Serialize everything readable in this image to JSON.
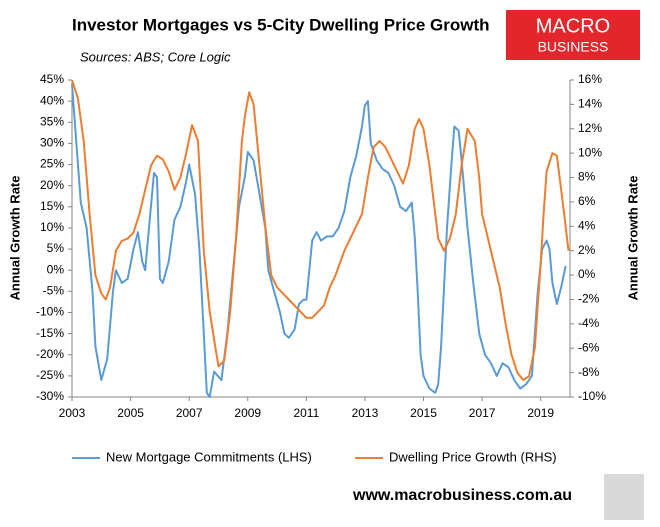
{
  "chart_data": {
    "type": "line",
    "title": "Investor Mortgages vs 5-City Dwelling Price Growth",
    "subtitle": "Sources: ABS; Core Logic",
    "logo": [
      "MACRO",
      "BUSINESS"
    ],
    "footer": "www.macrobusiness.com.au",
    "ylabel": "Annual Growth Rate",
    "y2label": "Annual Growth Rate",
    "xlim": [
      2003,
      2020
    ],
    "xticks": [
      2003,
      2005,
      2007,
      2009,
      2011,
      2013,
      2015,
      2017,
      2019
    ],
    "ylim": [
      -30,
      45
    ],
    "yticks": [
      {
        "value": -30,
        "label": "-30%"
      },
      {
        "value": -25,
        "label": "-25%"
      },
      {
        "value": -20,
        "label": "-20%"
      },
      {
        "value": -15,
        "label": "-15%"
      },
      {
        "value": -10,
        "label": "-10%"
      },
      {
        "value": -5,
        "label": "-5%"
      },
      {
        "value": 0,
        "label": "0%"
      },
      {
        "value": 5,
        "label": "5%"
      },
      {
        "value": 10,
        "label": "10%"
      },
      {
        "value": 15,
        "label": "15%"
      },
      {
        "value": 20,
        "label": "20%"
      },
      {
        "value": 25,
        "label": "25%"
      },
      {
        "value": 30,
        "label": "30%"
      },
      {
        "value": 35,
        "label": "35%"
      },
      {
        "value": 40,
        "label": "40%"
      },
      {
        "value": 45,
        "label": "45%"
      }
    ],
    "y2lim": [
      -10,
      16
    ],
    "y2ticks": [
      {
        "value": -10,
        "label": "-10%"
      },
      {
        "value": -8,
        "label": "-8%"
      },
      {
        "value": -6,
        "label": "-6%"
      },
      {
        "value": -4,
        "label": "-4%"
      },
      {
        "value": -2,
        "label": "-2%"
      },
      {
        "value": 0,
        "label": "0%"
      },
      {
        "value": 2,
        "label": "2%"
      },
      {
        "value": 4,
        "label": "4%"
      },
      {
        "value": 6,
        "label": "6%"
      },
      {
        "value": 8,
        "label": "8%"
      },
      {
        "value": 10,
        "label": "10%"
      },
      {
        "value": 12,
        "label": "12%"
      },
      {
        "value": 14,
        "label": "14%"
      },
      {
        "value": 16,
        "label": "16%"
      }
    ],
    "legend": "bottom",
    "series": [
      {
        "name": "New Mortgage Commitments (LHS)",
        "color": "#5b9bd5",
        "axis": "y",
        "x": [
          2003.0,
          2003.15,
          2003.3,
          2003.5,
          2003.7,
          2003.8,
          2004.0,
          2004.2,
          2004.4,
          2004.5,
          2004.7,
          2004.9,
          2005.1,
          2005.25,
          2005.4,
          2005.5,
          2005.6,
          2005.8,
          2005.9,
          2006.0,
          2006.1,
          2006.3,
          2006.5,
          2006.7,
          2006.9,
          2007.0,
          2007.2,
          2007.35,
          2007.5,
          2007.6,
          2007.7,
          2007.85,
          2008.1,
          2008.3,
          2008.5,
          2008.7,
          2008.9,
          2009.0,
          2009.2,
          2009.4,
          2009.6,
          2009.7,
          2009.9,
          2010.1,
          2010.25,
          2010.4,
          2010.6,
          2010.75,
          2010.9,
          2011.0,
          2011.1,
          2011.2,
          2011.35,
          2011.5,
          2011.7,
          2011.9,
          2012.1,
          2012.3,
          2012.5,
          2012.7,
          2012.9,
          2013.0,
          2013.1,
          2013.2,
          2013.4,
          2013.6,
          2013.8,
          2014.0,
          2014.2,
          2014.4,
          2014.6,
          2014.7,
          2014.8,
          2014.9,
          2015.0,
          2015.2,
          2015.4,
          2015.5,
          2015.6,
          2015.8,
          2015.95,
          2016.05,
          2016.2,
          2016.35,
          2016.5,
          2016.7,
          2016.9,
          2017.1,
          2017.3,
          2017.5,
          2017.7,
          2017.9,
          2018.1,
          2018.3,
          2018.5,
          2018.7,
          2018.8,
          2018.9,
          2019.05,
          2019.2,
          2019.3,
          2019.4,
          2019.55,
          2019.7,
          2019.85
        ],
        "values": [
          44,
          30,
          16,
          10,
          -5,
          -18,
          -26,
          -21,
          -5,
          0,
          -3,
          -2,
          5,
          9,
          2,
          0,
          8,
          23,
          22,
          -2,
          -3,
          2,
          12,
          15,
          21,
          25,
          18,
          5,
          -15,
          -29,
          -30,
          -24,
          -26,
          -15,
          0,
          15,
          22,
          28,
          26,
          18,
          10,
          0,
          -5,
          -10,
          -15,
          -16,
          -14,
          -8,
          -7,
          -7,
          0,
          7,
          9,
          7,
          8,
          8,
          10,
          14,
          22,
          27,
          34,
          39,
          40,
          30,
          26,
          24,
          23,
          20,
          15,
          14,
          16,
          8,
          -5,
          -20,
          -25,
          -28,
          -29,
          -27,
          -18,
          10,
          25,
          34,
          33,
          22,
          10,
          -3,
          -15,
          -20,
          -22,
          -25,
          -22,
          -23,
          -26,
          -28,
          -27,
          -25,
          -15,
          -5,
          5,
          7,
          5,
          -3,
          -8,
          -4,
          1
        ]
      },
      {
        "name": "Dwelling Price Growth (RHS)",
        "color": "#ed7d31",
        "axis": "y2",
        "x": [
          2003.0,
          2003.2,
          2003.4,
          2003.6,
          2003.8,
          2004.0,
          2004.15,
          2004.3,
          2004.5,
          2004.7,
          2004.9,
          2005.1,
          2005.3,
          2005.5,
          2005.7,
          2005.9,
          2006.1,
          2006.3,
          2006.5,
          2006.7,
          2006.9,
          2007.1,
          2007.3,
          2007.5,
          2007.7,
          2007.9,
          2008.0,
          2008.2,
          2008.4,
          2008.6,
          2008.8,
          2008.9,
          2009.05,
          2009.2,
          2009.4,
          2009.6,
          2009.8,
          2010.0,
          2010.2,
          2010.4,
          2010.6,
          2010.8,
          2011.0,
          2011.2,
          2011.4,
          2011.6,
          2011.8,
          2012.0,
          2012.3,
          2012.6,
          2012.9,
          2013.1,
          2013.3,
          2013.5,
          2013.7,
          2013.9,
          2014.1,
          2014.3,
          2014.5,
          2014.7,
          2014.85,
          2015.0,
          2015.2,
          2015.35,
          2015.5,
          2015.7,
          2015.9,
          2016.1,
          2016.3,
          2016.5,
          2016.75,
          2016.9,
          2017.0,
          2017.2,
          2017.4,
          2017.6,
          2017.8,
          2018.0,
          2018.2,
          2018.4,
          2018.6,
          2018.8,
          2019.0,
          2019.1,
          2019.2,
          2019.4,
          2019.55,
          2019.7,
          2019.85,
          2019.95
        ],
        "values": [
          16,
          14.5,
          11,
          5,
          0,
          -1.5,
          -2,
          -1,
          2,
          2.8,
          3,
          3.5,
          5,
          7,
          9,
          9.8,
          9.5,
          8.5,
          7,
          8,
          10,
          12.3,
          11,
          2,
          -3,
          -6,
          -7.5,
          -7,
          -3,
          3,
          11,
          13,
          15,
          14,
          9,
          4,
          0,
          -1,
          -1.5,
          -2,
          -2.5,
          -3,
          -3.5,
          -3.5,
          -3,
          -2.5,
          -1,
          0,
          2,
          3.5,
          5,
          8,
          10.5,
          11,
          10.5,
          9.5,
          8.5,
          7.5,
          9,
          12,
          12.8,
          12,
          9,
          6,
          3,
          2,
          3,
          5,
          9,
          12,
          11,
          8,
          5,
          3,
          1,
          -1,
          -4,
          -6.5,
          -8,
          -8.6,
          -8.3,
          -6,
          1,
          5,
          8.5,
          10,
          9.8,
          7,
          4,
          2
        ]
      }
    ]
  }
}
